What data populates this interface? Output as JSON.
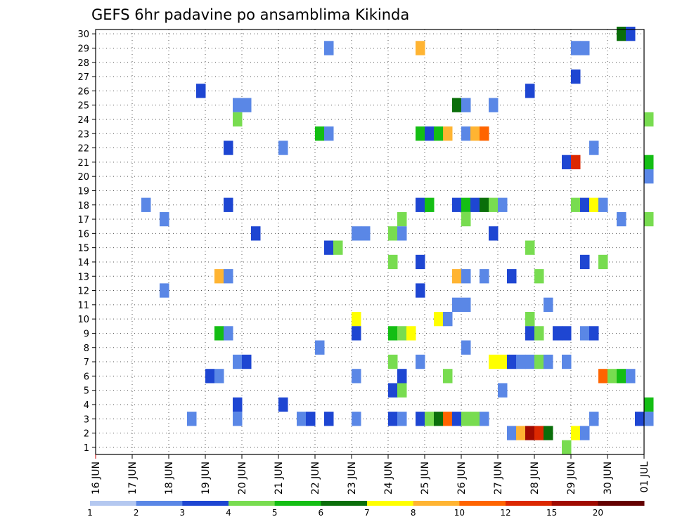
{
  "chart_data": {
    "type": "heatmap",
    "title": "GEFS 6hr padavine po ansamblima Kikinda",
    "xlabel": "",
    "ylabel": "",
    "x_ticks": [
      "16 JUN",
      "17 JUN",
      "18 JUN",
      "19 JUN",
      "20 JUN",
      "21 JUN",
      "22 JUN",
      "23 JUN",
      "24 JUN",
      "25 JUN",
      "26 JUN",
      "27 JUN",
      "28 JUN",
      "29 JUN",
      "30 JUN",
      "01 JUL"
    ],
    "xlim_days": [
      0,
      15
    ],
    "y_members": [
      1,
      30
    ],
    "grid": true,
    "color_scale": {
      "labels": [
        "1",
        "2",
        "3",
        "4",
        "5",
        "6",
        "7",
        "8",
        "10",
        "12",
        "15",
        "20"
      ],
      "colors": [
        "#b4c8f0",
        "#5a87e6",
        "#1e46d2",
        "#78dc50",
        "#14be14",
        "#0a6e0a",
        "#ffff00",
        "#ffb432",
        "#ff6400",
        "#dc2800",
        "#a00a00",
        "#640000"
      ]
    },
    "cells": [
      [
        14.25,
        30,
        5
      ],
      [
        14.5,
        30,
        2
      ],
      [
        6.25,
        29,
        1
      ],
      [
        8.75,
        29,
        7
      ],
      [
        13.0,
        29,
        1
      ],
      [
        13.25,
        29,
        1
      ],
      [
        13.0,
        27,
        2
      ],
      [
        2.75,
        26,
        2
      ],
      [
        11.75,
        26,
        2
      ],
      [
        3.75,
        25,
        1
      ],
      [
        4.0,
        25,
        1
      ],
      [
        9.75,
        25,
        5
      ],
      [
        10.0,
        25,
        1
      ],
      [
        10.75,
        25,
        1
      ],
      [
        3.75,
        24,
        3
      ],
      [
        15.0,
        24,
        3
      ],
      [
        6.0,
        23,
        4
      ],
      [
        6.25,
        23,
        1
      ],
      [
        8.75,
        23,
        4
      ],
      [
        9.0,
        23,
        2
      ],
      [
        9.25,
        23,
        4
      ],
      [
        9.5,
        23,
        7
      ],
      [
        10.0,
        23,
        1
      ],
      [
        10.25,
        23,
        7
      ],
      [
        10.5,
        23,
        8
      ],
      [
        3.5,
        22,
        2
      ],
      [
        5.0,
        22,
        1
      ],
      [
        13.5,
        22,
        1
      ],
      [
        12.75,
        21,
        2
      ],
      [
        13.0,
        21,
        9
      ],
      [
        15.0,
        21,
        4
      ],
      [
        15.0,
        20,
        1
      ],
      [
        1.25,
        18,
        1
      ],
      [
        3.5,
        18,
        2
      ],
      [
        8.75,
        18,
        2
      ],
      [
        9.0,
        18,
        4
      ],
      [
        9.75,
        18,
        2
      ],
      [
        10.0,
        18,
        4
      ],
      [
        10.25,
        18,
        2
      ],
      [
        10.5,
        18,
        5
      ],
      [
        10.75,
        18,
        3
      ],
      [
        11.0,
        18,
        1
      ],
      [
        13.0,
        18,
        3
      ],
      [
        13.25,
        18,
        2
      ],
      [
        13.5,
        18,
        6
      ],
      [
        13.75,
        18,
        1
      ],
      [
        1.75,
        17,
        1
      ],
      [
        8.25,
        17,
        3
      ],
      [
        10.0,
        17,
        3
      ],
      [
        14.25,
        17,
        1
      ],
      [
        15.0,
        17,
        3
      ],
      [
        4.25,
        16,
        2
      ],
      [
        7.0,
        16,
        1
      ],
      [
        7.25,
        16,
        1
      ],
      [
        8.0,
        16,
        3
      ],
      [
        8.25,
        16,
        1
      ],
      [
        10.75,
        16,
        2
      ],
      [
        6.25,
        15,
        2
      ],
      [
        6.5,
        15,
        3
      ],
      [
        11.75,
        15,
        3
      ],
      [
        8.0,
        14,
        3
      ],
      [
        8.75,
        14,
        2
      ],
      [
        13.25,
        14,
        2
      ],
      [
        13.75,
        14,
        3
      ],
      [
        3.25,
        13,
        7
      ],
      [
        3.5,
        13,
        1
      ],
      [
        9.75,
        13,
        7
      ],
      [
        10.0,
        13,
        1
      ],
      [
        10.5,
        13,
        1
      ],
      [
        11.25,
        13,
        2
      ],
      [
        12.0,
        13,
        3
      ],
      [
        1.75,
        12,
        1
      ],
      [
        8.75,
        12,
        2
      ],
      [
        9.75,
        11,
        1
      ],
      [
        10.0,
        11,
        1
      ],
      [
        12.25,
        11,
        1
      ],
      [
        7.0,
        10,
        6
      ],
      [
        9.25,
        10,
        6
      ],
      [
        9.5,
        10,
        1
      ],
      [
        11.75,
        10,
        3
      ],
      [
        3.25,
        9,
        4
      ],
      [
        3.5,
        9,
        1
      ],
      [
        7.0,
        9,
        2
      ],
      [
        8.0,
        9,
        4
      ],
      [
        8.25,
        9,
        3
      ],
      [
        8.5,
        9,
        6
      ],
      [
        11.75,
        9,
        2
      ],
      [
        12.0,
        9,
        3
      ],
      [
        12.5,
        9,
        2
      ],
      [
        12.75,
        9,
        2
      ],
      [
        13.25,
        9,
        1
      ],
      [
        13.5,
        9,
        2
      ],
      [
        6.0,
        8,
        1
      ],
      [
        10.0,
        8,
        1
      ],
      [
        3.75,
        7,
        1
      ],
      [
        4.0,
        7,
        2
      ],
      [
        8.0,
        7,
        3
      ],
      [
        8.75,
        7,
        1
      ],
      [
        10.75,
        7,
        6
      ],
      [
        11.0,
        7,
        6
      ],
      [
        11.25,
        7,
        2
      ],
      [
        11.5,
        7,
        1
      ],
      [
        11.75,
        7,
        1
      ],
      [
        12.0,
        7,
        3
      ],
      [
        12.25,
        7,
        1
      ],
      [
        12.75,
        7,
        1
      ],
      [
        3.0,
        6,
        2
      ],
      [
        3.25,
        6,
        1
      ],
      [
        7.0,
        6,
        1
      ],
      [
        8.25,
        6,
        2
      ],
      [
        9.5,
        6,
        3
      ],
      [
        13.75,
        6,
        8
      ],
      [
        14.0,
        6,
        3
      ],
      [
        14.25,
        6,
        4
      ],
      [
        14.5,
        6,
        1
      ],
      [
        8.0,
        5,
        2
      ],
      [
        8.25,
        5,
        3
      ],
      [
        11.0,
        5,
        1
      ],
      [
        3.75,
        4,
        2
      ],
      [
        5.0,
        4,
        2
      ],
      [
        15.0,
        4,
        4
      ],
      [
        2.5,
        3,
        1
      ],
      [
        3.75,
        3,
        1
      ],
      [
        5.5,
        3,
        1
      ],
      [
        5.75,
        3,
        2
      ],
      [
        6.25,
        3,
        2
      ],
      [
        7.0,
        3,
        1
      ],
      [
        8.0,
        3,
        2
      ],
      [
        8.25,
        3,
        1
      ],
      [
        8.75,
        3,
        2
      ],
      [
        9.0,
        3,
        3
      ],
      [
        9.25,
        3,
        5
      ],
      [
        9.5,
        3,
        8
      ],
      [
        9.75,
        3,
        2
      ],
      [
        10.0,
        3,
        3
      ],
      [
        10.25,
        3,
        3
      ],
      [
        10.5,
        3,
        1
      ],
      [
        13.5,
        3,
        1
      ],
      [
        14.75,
        3,
        2
      ],
      [
        15.0,
        3,
        1
      ],
      [
        11.25,
        2,
        1
      ],
      [
        11.5,
        2,
        7
      ],
      [
        11.75,
        2,
        10
      ],
      [
        12.0,
        2,
        9
      ],
      [
        12.25,
        2,
        5
      ],
      [
        13.0,
        2,
        6
      ],
      [
        13.25,
        2,
        1
      ],
      [
        12.75,
        1,
        3
      ]
    ]
  }
}
